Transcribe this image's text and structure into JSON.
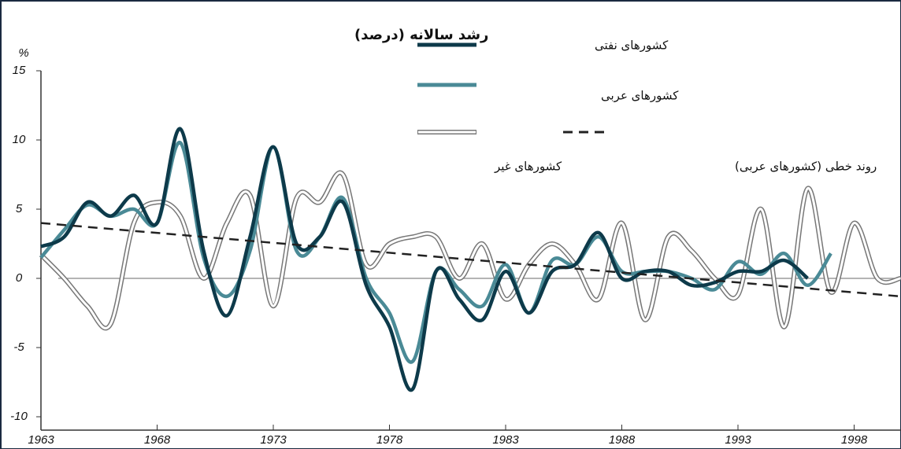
{
  "chart_data": {
    "type": "line",
    "title": "رشد سالانه (درصد)",
    "y_unit": "%",
    "x": [
      1963,
      1964,
      1965,
      1966,
      1967,
      1968,
      1969,
      1970,
      1971,
      1972,
      1973,
      1974,
      1975,
      1976,
      1977,
      1978,
      1979,
      1980,
      1981,
      1982,
      1983,
      1984,
      1985,
      1986,
      1987,
      1988,
      1989,
      1990,
      1991,
      1992,
      1993,
      1994,
      1995,
      1996,
      1997,
      1998,
      1999,
      2000
    ],
    "series": [
      {
        "name": "کشورهای نفتی",
        "color": "#0d3a4a",
        "values": [
          2.3,
          3,
          5.5,
          4.5,
          6,
          4,
          10.8,
          2,
          -2.7,
          3,
          9.5,
          2.5,
          3,
          5.5,
          -0.5,
          -3.5,
          -8,
          0.5,
          -1.5,
          -3,
          0.5,
          -2.5,
          0.5,
          1,
          3.3,
          0,
          0.5,
          0.5,
          -0.5,
          -0.3,
          0.5,
          0.5,
          1.3,
          0,
          null,
          null,
          null,
          null
        ]
      },
      {
        "name": "کشورهای عربی",
        "color": "#4a8a96",
        "values": [
          1.5,
          3.5,
          5.3,
          4.5,
          5,
          4,
          9.8,
          1.5,
          -1.3,
          2,
          9.5,
          2,
          3,
          5.8,
          0,
          -2.5,
          -6,
          0.5,
          -0.8,
          -2,
          1,
          -2.5,
          1.3,
          1,
          3,
          0.5,
          0.5,
          0.5,
          0,
          -0.8,
          1.2,
          0.3,
          1.8,
          -0.5,
          1.8,
          null,
          null,
          null
        ]
      },
      {
        "name": "کشورهای غیر",
        "color": "#ffffff",
        "values": [
          1.7,
          0,
          -2,
          -3.3,
          4,
          5.5,
          4.5,
          0,
          4,
          6,
          -2,
          5.8,
          5.5,
          7.5,
          1,
          2.5,
          3,
          3,
          0,
          2.5,
          -1.5,
          1,
          2.5,
          1,
          -1.5,
          4,
          -3,
          3,
          2,
          0,
          -1.2,
          5,
          -3.5,
          6.5,
          -1,
          4,
          0,
          0
        ]
      }
    ],
    "trend": {
      "name": "روند خطی (کشورهای عربی)",
      "color": "#222222",
      "x": [
        1963,
        2000
      ],
      "values": [
        4,
        -1.3
      ]
    },
    "xlim": [
      1963,
      2000
    ],
    "xticks": [
      1963,
      1968,
      1973,
      1978,
      1983,
      1988,
      1993,
      1998
    ],
    "ylim": [
      -10,
      15
    ],
    "yticks": [
      15,
      10,
      5,
      0,
      -5,
      -10
    ]
  }
}
